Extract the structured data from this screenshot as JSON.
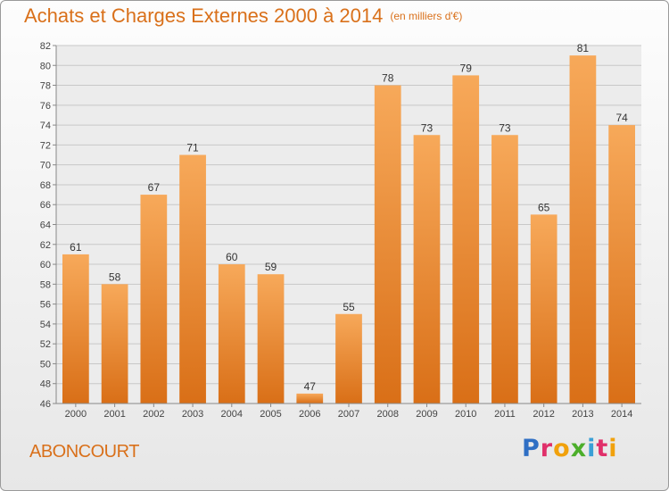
{
  "title": "Achats et Charges Externes 2000 à 2014",
  "title_unit": "(en milliers d'€)",
  "city": "ABONCOURT",
  "logo": {
    "text": "Proxiti",
    "letter_colors": [
      "#2f6fc4",
      "#e0306a",
      "#f1a10c",
      "#4cae2a",
      "#3aa0d6",
      "#e0306a",
      "#f1a10c"
    ]
  },
  "colors": {
    "bar_light": "#f7a95a",
    "bar_dark": "#d96f17",
    "accent": "#d9701a"
  },
  "chart_data": {
    "type": "bar",
    "categories": [
      "2000",
      "2001",
      "2002",
      "2003",
      "2004",
      "2005",
      "2006",
      "2007",
      "2008",
      "2009",
      "2010",
      "2011",
      "2012",
      "2013",
      "2014"
    ],
    "values": [
      61,
      58,
      67,
      71,
      60,
      59,
      47,
      55,
      78,
      73,
      79,
      73,
      65,
      81,
      74
    ],
    "ylim": [
      46,
      82
    ],
    "yticks": [
      46,
      48,
      50,
      52,
      54,
      56,
      58,
      60,
      62,
      64,
      66,
      68,
      70,
      72,
      74,
      76,
      78,
      80,
      82
    ],
    "grid": true,
    "title": "Achats et Charges Externes 2000 à 2014",
    "xlabel": "",
    "ylabel": ""
  }
}
